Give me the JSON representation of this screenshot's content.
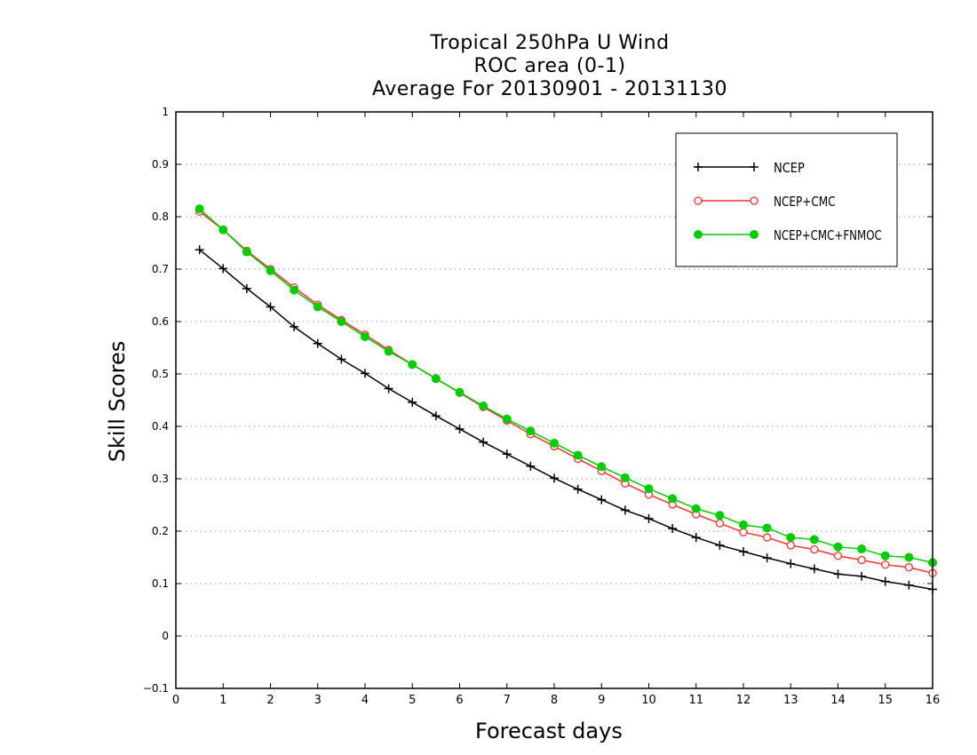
{
  "chart_data": {
    "type": "line",
    "title": [
      "Tropical 250hPa U Wind",
      "ROC area (0-1)",
      "Average For 20130901 - 20131130"
    ],
    "xlabel": "Forecast days",
    "ylabel": "Skill Scores",
    "xlim": [
      0,
      16
    ],
    "ylim": [
      -0.1,
      1
    ],
    "xticks": [
      "0",
      "1",
      "2",
      "3",
      "4",
      "5",
      "6",
      "7",
      "8",
      "9",
      "10",
      "11",
      "12",
      "13",
      "14",
      "15",
      "16"
    ],
    "yticks": [
      "−0.1",
      "0",
      "0.1",
      "0.2",
      "0.3",
      "0.4",
      "0.5",
      "0.6",
      "0.7",
      "0.8",
      "0.9",
      "1"
    ],
    "grid": "horizontal dotted",
    "legend_position": "top-right",
    "x": [
      0.5,
      1,
      1.5,
      2,
      2.5,
      3,
      3.5,
      4,
      4.5,
      5,
      5.5,
      6,
      6.5,
      7,
      7.5,
      8,
      8.5,
      9,
      9.5,
      10,
      10.5,
      11,
      11.5,
      12,
      12.5,
      13,
      13.5,
      14,
      14.5,
      15,
      15.5,
      16
    ],
    "series": [
      {
        "name": "NCEP",
        "color": "#000000",
        "marker": "plus",
        "values": [
          0.737,
          0.701,
          0.663,
          0.628,
          0.59,
          0.558,
          0.528,
          0.501,
          0.472,
          0.446,
          0.42,
          0.395,
          0.37,
          0.347,
          0.324,
          0.301,
          0.28,
          0.26,
          0.24,
          0.224,
          0.205,
          0.188,
          0.173,
          0.161,
          0.149,
          0.138,
          0.128,
          0.118,
          0.114,
          0.104,
          0.097,
          0.089
        ]
      },
      {
        "name": "NCEP+CMC",
        "color": "#ff3030",
        "marker": "open-circle",
        "values": [
          0.81,
          0.775,
          0.735,
          0.7,
          0.665,
          0.632,
          0.603,
          0.575,
          0.546,
          0.518,
          0.491,
          0.464,
          0.437,
          0.411,
          0.385,
          0.362,
          0.338,
          0.315,
          0.291,
          0.27,
          0.251,
          0.232,
          0.215,
          0.198,
          0.188,
          0.173,
          0.165,
          0.153,
          0.145,
          0.136,
          0.131,
          0.12
        ]
      },
      {
        "name": "NCEP+CMC+FNMOC",
        "color": "#00cc00",
        "marker": "filled-circle",
        "values": [
          0.815,
          0.775,
          0.733,
          0.697,
          0.66,
          0.628,
          0.6,
          0.571,
          0.543,
          0.518,
          0.491,
          0.465,
          0.439,
          0.414,
          0.391,
          0.368,
          0.345,
          0.323,
          0.302,
          0.281,
          0.262,
          0.243,
          0.23,
          0.212,
          0.206,
          0.188,
          0.184,
          0.17,
          0.166,
          0.153,
          0.15,
          0.14
        ]
      }
    ]
  }
}
